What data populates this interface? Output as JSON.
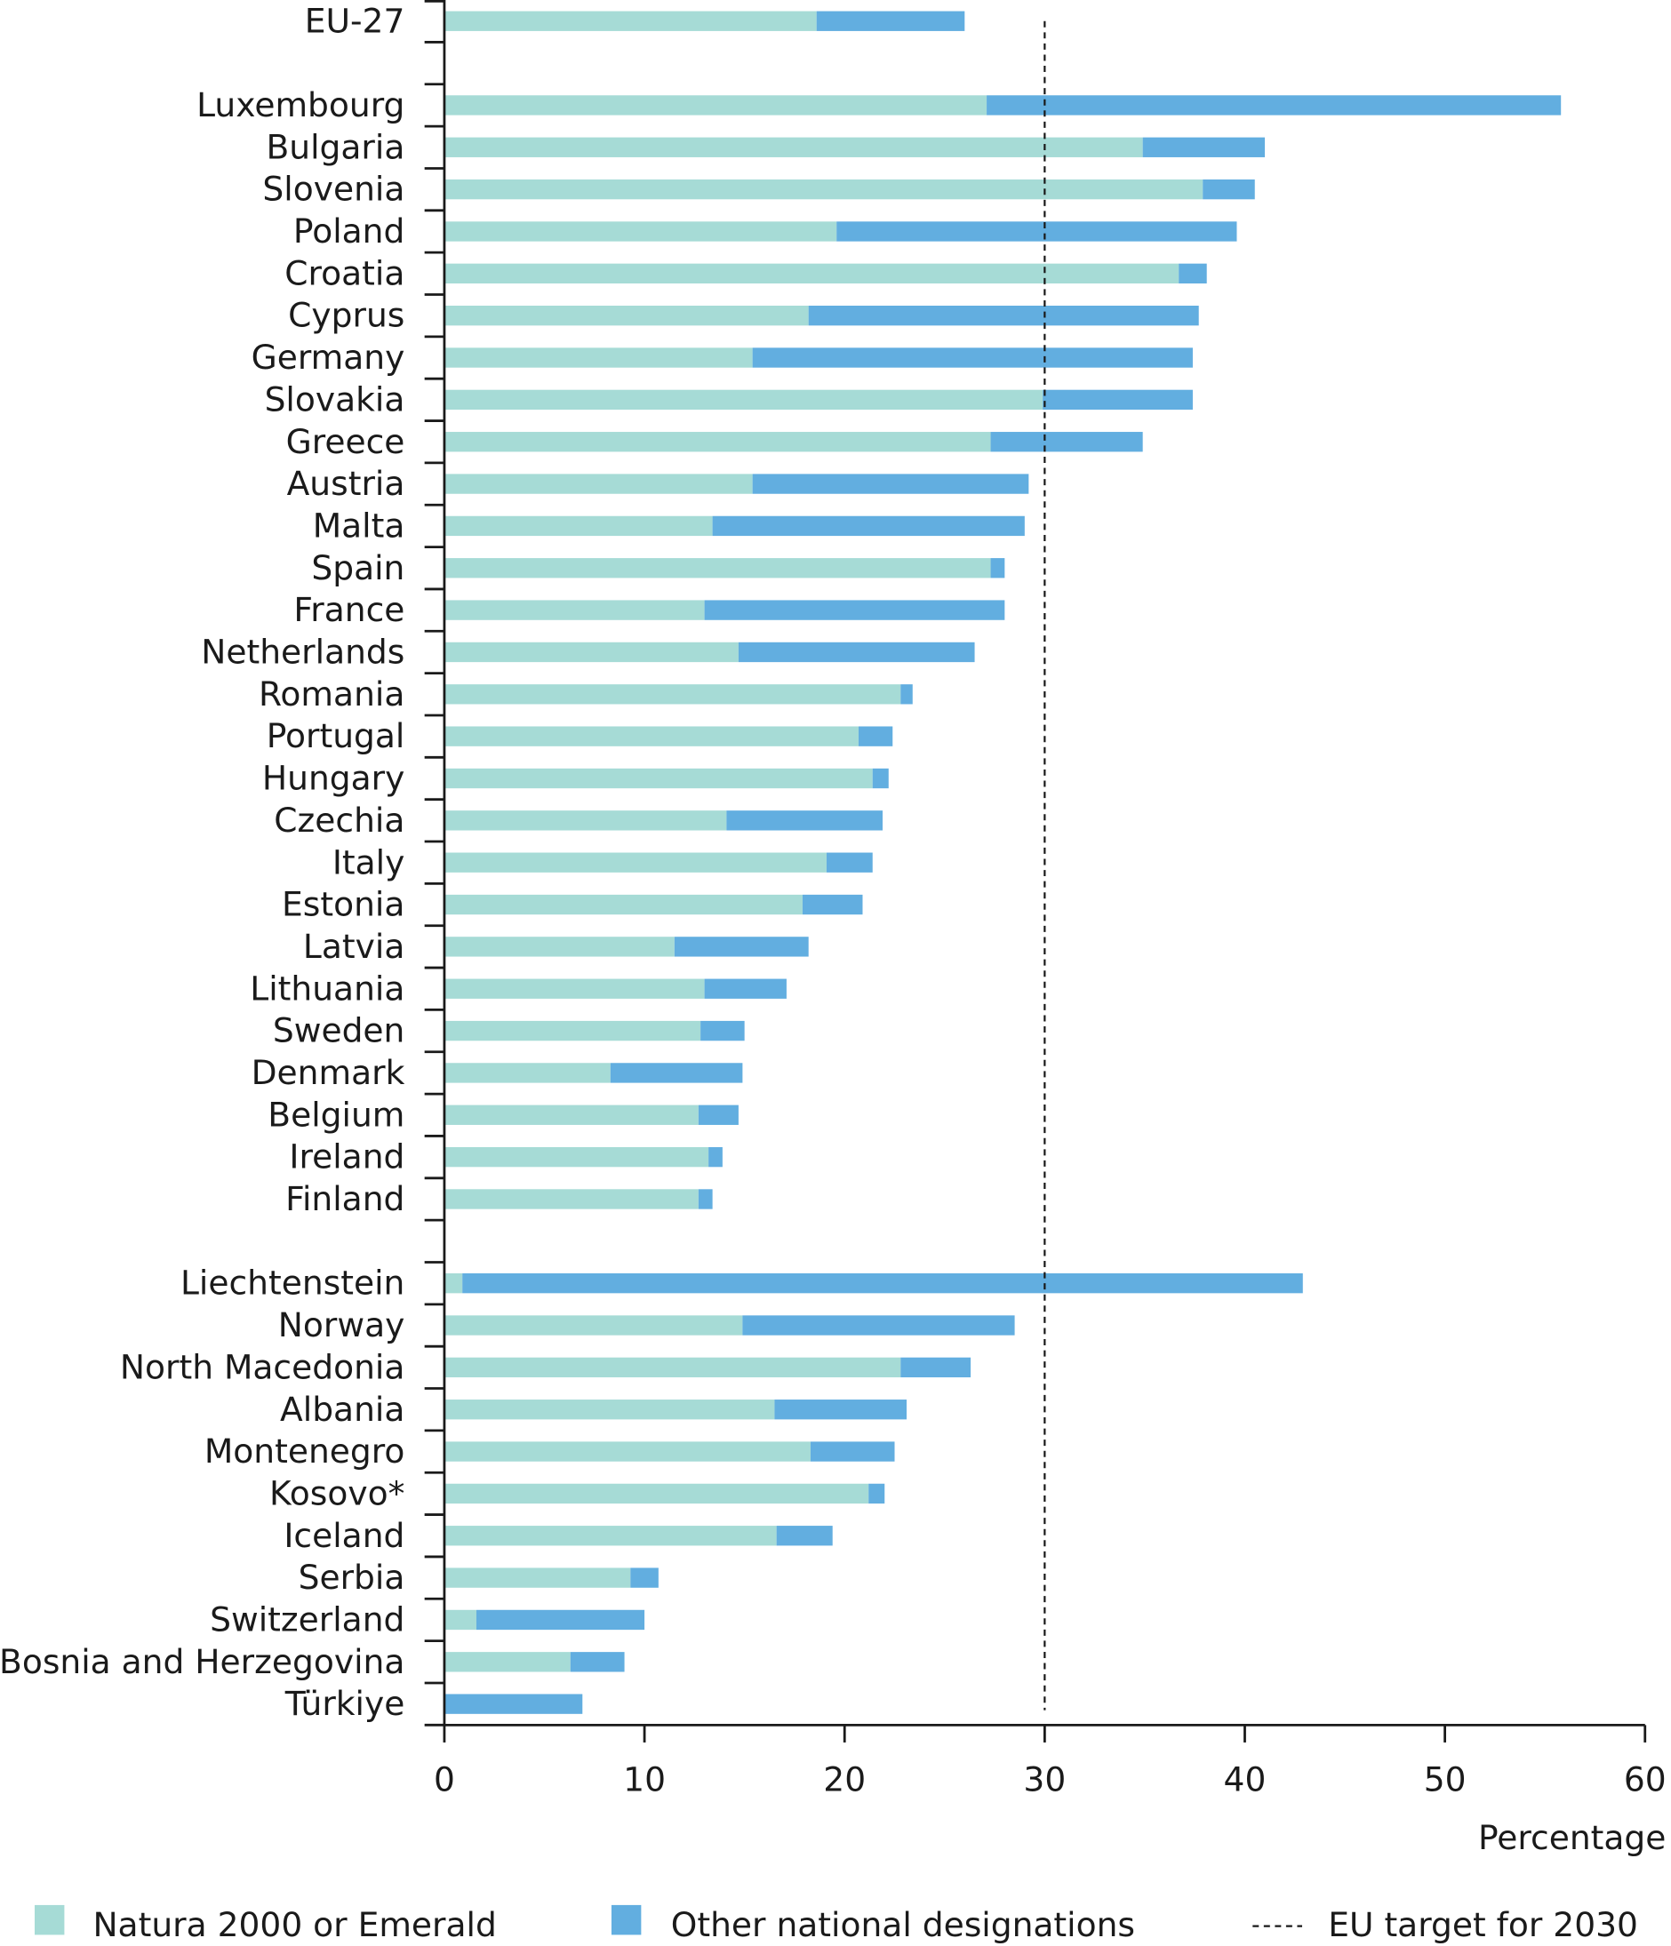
{
  "chart_data": {
    "type": "bar",
    "orientation": "horizontal",
    "stacked": true,
    "xlabel": "Percentage",
    "xlim": [
      0,
      60
    ],
    "xticks": [
      0,
      10,
      20,
      30,
      40,
      50,
      60
    ],
    "target_line": {
      "value": 30,
      "label": "EU target for 2030"
    },
    "colors": {
      "natura": "#a6dbd6",
      "other": "#62aee0",
      "axis": "#1a1a1a"
    },
    "groups": [
      {
        "categories": [
          "EU-27"
        ],
        "natura": [
          18.6
        ],
        "total": [
          26.0
        ]
      },
      {
        "categories": [
          "Luxembourg",
          "Bulgaria",
          "Slovenia",
          "Poland",
          "Croatia",
          "Cyprus",
          "Germany",
          "Slovakia",
          "Greece",
          "Austria",
          "Malta",
          "Spain",
          "France",
          "Netherlands",
          "Romania",
          "Portugal",
          "Hungary",
          "Czechia",
          "Italy",
          "Estonia",
          "Latvia",
          "Lithuania",
          "Sweden",
          "Denmark",
          "Belgium",
          "Ireland",
          "Finland"
        ],
        "natura": [
          27.1,
          34.9,
          37.9,
          19.6,
          36.7,
          18.2,
          15.4,
          29.9,
          27.3,
          15.4,
          13.4,
          27.3,
          13.0,
          14.7,
          22.8,
          20.7,
          21.4,
          14.1,
          19.1,
          17.9,
          11.5,
          13.0,
          12.8,
          8.3,
          12.7,
          13.2,
          12.7
        ],
        "total": [
          55.8,
          41.0,
          40.5,
          39.6,
          38.1,
          37.7,
          37.4,
          37.4,
          34.9,
          29.2,
          29.0,
          28.0,
          28.0,
          26.5,
          23.4,
          22.4,
          22.2,
          21.9,
          21.4,
          20.9,
          18.2,
          17.1,
          15.0,
          14.9,
          14.7,
          13.9,
          13.4
        ]
      },
      {
        "categories": [
          "Liechtenstein",
          "Norway",
          "North Macedonia",
          "Albania",
          "Montenegro",
          "Kosovo*",
          "Iceland",
          "Serbia",
          "Switzerland",
          "Bosnia and Herzegovina",
          "Türkiye"
        ],
        "natura": [
          0.9,
          14.9,
          22.8,
          16.5,
          18.3,
          21.2,
          16.6,
          9.3,
          1.6,
          6.3,
          0.0
        ],
        "total": [
          42.9,
          28.5,
          26.3,
          23.1,
          22.5,
          22.0,
          19.4,
          10.7,
          10.0,
          9.0,
          6.9
        ]
      }
    ],
    "legend": {
      "placement": "bottom",
      "entries": [
        "Natura 2000 or Emerald",
        "Other national designations",
        "EU target for 2030"
      ]
    }
  }
}
